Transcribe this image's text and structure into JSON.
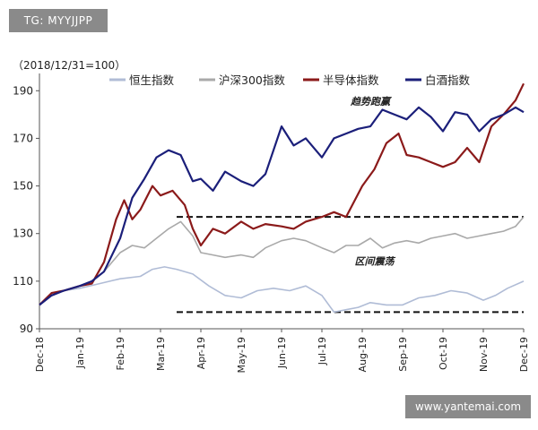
{
  "watermarks": {
    "top": "TG: MYYJJPP",
    "bottom": "www.yantemai.com"
  },
  "chart_data": {
    "type": "line",
    "base_note": "（2018/12/31=100）",
    "title": "",
    "xlabel": "",
    "ylabel": "",
    "ylim": [
      90,
      195
    ],
    "yticks": [
      90,
      110,
      130,
      150,
      170,
      190
    ],
    "x_range": [
      0,
      12
    ],
    "x_ticks": [
      {
        "x": 0,
        "label": "Dec-18"
      },
      {
        "x": 1,
        "label": "Jan-19"
      },
      {
        "x": 2,
        "label": "Feb-19"
      },
      {
        "x": 3,
        "label": "Mar-19"
      },
      {
        "x": 4,
        "label": "Apr-19"
      },
      {
        "x": 5,
        "label": "May-19"
      },
      {
        "x": 6,
        "label": "Jun-19"
      },
      {
        "x": 7,
        "label": "Jul-19"
      },
      {
        "x": 8,
        "label": "Aug-19"
      },
      {
        "x": 9,
        "label": "Sep-19"
      },
      {
        "x": 10,
        "label": "Oct-19"
      },
      {
        "x": 11,
        "label": "Nov-19"
      },
      {
        "x": 12,
        "label": "Dec-19"
      }
    ],
    "legend_placement": "top",
    "grid": false,
    "series": [
      {
        "name": "恒生指数",
        "color": "#b0bcd6",
        "x": [
          0,
          0.3,
          0.6,
          1,
          1.5,
          2,
          2.5,
          2.8,
          3.1,
          3.4,
          3.8,
          4.2,
          4.6,
          5,
          5.4,
          5.8,
          6.2,
          6.6,
          7,
          7.3,
          7.6,
          7.9,
          8.2,
          8.6,
          9,
          9.4,
          9.8,
          10.2,
          10.6,
          11,
          11.3,
          11.6,
          12
        ],
        "y": [
          100,
          104,
          106,
          107,
          109,
          111,
          112,
          115,
          116,
          115,
          113,
          108,
          104,
          103,
          106,
          107,
          106,
          108,
          104,
          97,
          98,
          99,
          101,
          100,
          100,
          103,
          104,
          106,
          105,
          102,
          104,
          107,
          110
        ]
      },
      {
        "name": "沪深300指数",
        "color": "#a9a9a9",
        "x": [
          0,
          0.3,
          0.6,
          1,
          1.3,
          1.6,
          2,
          2.3,
          2.6,
          2.9,
          3.2,
          3.5,
          3.8,
          4,
          4.3,
          4.6,
          5,
          5.3,
          5.6,
          6,
          6.3,
          6.6,
          7,
          7.3,
          7.6,
          7.9,
          8.2,
          8.5,
          8.8,
          9.1,
          9.4,
          9.7,
          10,
          10.3,
          10.6,
          10.9,
          11.2,
          11.5,
          11.8,
          12
        ],
        "y": [
          100,
          104,
          106,
          108,
          110,
          114,
          122,
          125,
          124,
          128,
          132,
          135,
          129,
          122,
          121,
          120,
          121,
          120,
          124,
          127,
          128,
          127,
          124,
          122,
          125,
          125,
          128,
          124,
          126,
          127,
          126,
          128,
          129,
          130,
          128,
          129,
          130,
          131,
          133,
          137
        ]
      },
      {
        "name": "半导体指数",
        "color": "#8b1a1a",
        "x": [
          0,
          0.3,
          0.6,
          1,
          1.3,
          1.6,
          1.9,
          2.1,
          2.3,
          2.5,
          2.8,
          3,
          3.3,
          3.6,
          3.8,
          4,
          4.3,
          4.6,
          5,
          5.3,
          5.6,
          6,
          6.3,
          6.6,
          7,
          7.3,
          7.6,
          8,
          8.3,
          8.6,
          8.9,
          9.1,
          9.4,
          9.7,
          10,
          10.3,
          10.6,
          10.9,
          11.2,
          11.5,
          11.8,
          12
        ],
        "y": [
          100,
          105,
          106,
          108,
          109,
          118,
          136,
          144,
          136,
          140,
          150,
          146,
          148,
          142,
          132,
          125,
          132,
          130,
          135,
          132,
          134,
          133,
          132,
          135,
          137,
          139,
          137,
          150,
          157,
          168,
          172,
          163,
          162,
          160,
          158,
          160,
          166,
          160,
          175,
          180,
          186,
          193
        ]
      },
      {
        "name": "白酒指数",
        "color": "#1b1f7a",
        "x": [
          0,
          0.3,
          0.6,
          1,
          1.3,
          1.6,
          2,
          2.3,
          2.6,
          2.9,
          3.2,
          3.5,
          3.8,
          4,
          4.3,
          4.6,
          5,
          5.3,
          5.6,
          6,
          6.3,
          6.6,
          7,
          7.3,
          7.6,
          7.9,
          8.2,
          8.5,
          8.8,
          9.1,
          9.4,
          9.7,
          10,
          10.3,
          10.6,
          10.9,
          11.2,
          11.5,
          11.8,
          12
        ],
        "y": [
          100,
          104,
          106,
          108,
          110,
          114,
          128,
          145,
          153,
          162,
          165,
          163,
          152,
          153,
          148,
          156,
          152,
          150,
          155,
          175,
          167,
          170,
          162,
          170,
          172,
          174,
          175,
          182,
          180,
          178,
          183,
          179,
          173,
          181,
          180,
          173,
          178,
          180,
          183,
          181
        ]
      }
    ],
    "reference_lines": [
      {
        "y": 137,
        "x_start": 3.4,
        "x_end": 12
      },
      {
        "y": 97,
        "x_start": 3.4,
        "x_end": 12
      }
    ],
    "annotations": [
      {
        "text": "趋势跑赢",
        "x": 8.2,
        "y": 184
      },
      {
        "text": "区间震荡",
        "x": 8.3,
        "y": 117
      }
    ]
  }
}
